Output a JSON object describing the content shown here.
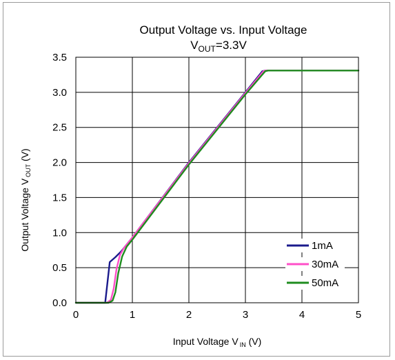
{
  "chart_data": {
    "type": "line",
    "title": "Output Voltage vs. Input Voltage",
    "subtitle": {
      "main": "V",
      "sub": "OUT",
      "rest": "=3.3V"
    },
    "xlabel": {
      "main": "Input Voltage V",
      "sub": "IN",
      "rest": " (V)"
    },
    "ylabel": {
      "main": "Output Voltage V",
      "sub": "OUT",
      "rest": " (V)"
    },
    "xlim": [
      0,
      5
    ],
    "ylim": [
      0,
      3.5
    ],
    "xticks": [
      "0",
      "1",
      "2",
      "3",
      "4",
      "5"
    ],
    "yticks": [
      "0.0",
      "0.5",
      "1.0",
      "1.5",
      "2.0",
      "2.5",
      "3.0",
      "3.5"
    ],
    "grid": true,
    "legend_position": "bottom-right",
    "series": [
      {
        "name": "1mA",
        "color": "#1a1a8c",
        "x": [
          0,
          0.52,
          0.6,
          0.7,
          0.8,
          1.0,
          2.0,
          3.0,
          3.3,
          3.35,
          5.0
        ],
        "y": [
          0,
          0,
          0.58,
          0.65,
          0.73,
          0.93,
          2.0,
          3.0,
          3.3,
          3.31,
          3.31
        ]
      },
      {
        "name": "30mA",
        "color": "#ff4fc8",
        "x": [
          0,
          0.55,
          0.62,
          0.67,
          0.72,
          0.78,
          0.85,
          1.0,
          2.0,
          3.0,
          3.32,
          3.36,
          5.0
        ],
        "y": [
          0,
          0,
          0.04,
          0.2,
          0.48,
          0.68,
          0.78,
          0.93,
          1.99,
          2.99,
          3.3,
          3.31,
          3.31
        ]
      },
      {
        "name": "50mA",
        "color": "#1f8c1f",
        "x": [
          0,
          0.58,
          0.65,
          0.7,
          0.75,
          0.82,
          0.9,
          1.0,
          2.0,
          3.0,
          3.35,
          3.4,
          5.0
        ],
        "y": [
          0,
          0,
          0.03,
          0.15,
          0.42,
          0.66,
          0.8,
          0.9,
          1.97,
          2.97,
          3.3,
          3.31,
          3.31
        ]
      }
    ]
  }
}
